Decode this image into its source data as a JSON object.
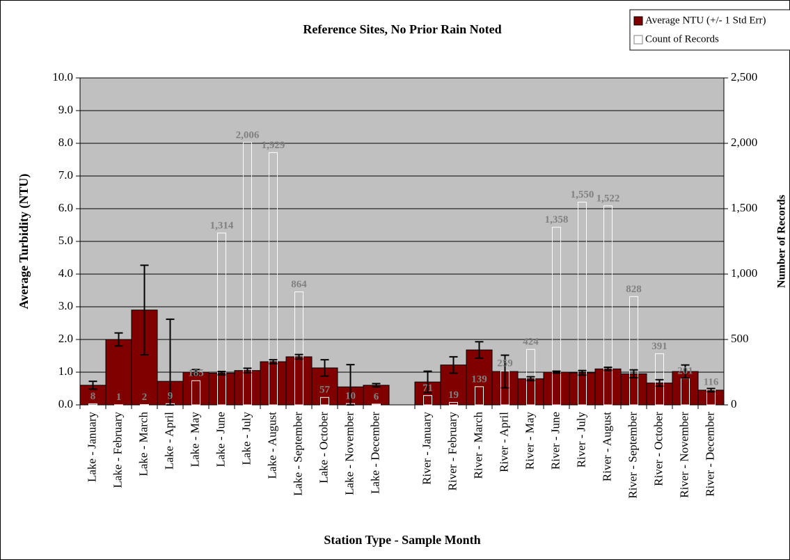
{
  "chart_data": {
    "type": "bar",
    "title": "Reference Sites, No Prior Rain Noted",
    "x_label": "Station Type - Sample Month",
    "y_label": "Average Turbidity (NTU)",
    "y2_label": "Number of Records",
    "categories": [
      "Lake - January",
      "Lake - February",
      "Lake - March",
      "Lake - April",
      "Lake - May",
      "Lake - June",
      "Lake - July",
      "Lake - August",
      "Lake - September",
      "Lake - October",
      "Lake - November",
      "Lake - December",
      null,
      "River - January",
      "River - February",
      "River - March",
      "River - April",
      "River - May",
      "River - June",
      "River - July",
      "River - August",
      "River - September",
      "River - October",
      "River - November",
      "River - December"
    ],
    "series": [
      {
        "name": "Average NTU (+/- 1 Std Err)",
        "color": "#800000",
        "values": [
          0.6,
          2.0,
          2.9,
          0.72,
          1.0,
          0.97,
          1.05,
          1.32,
          1.47,
          1.13,
          0.55,
          0.6,
          null,
          0.7,
          1.22,
          1.68,
          1.02,
          0.8,
          1.0,
          0.98,
          1.1,
          0.95,
          0.67,
          1.02,
          0.45
        ],
        "errors": [
          0.12,
          0.2,
          1.37,
          1.9,
          0.08,
          0.05,
          0.07,
          0.06,
          0.07,
          0.25,
          0.68,
          0.05,
          null,
          0.33,
          0.25,
          0.25,
          0.5,
          0.06,
          0.03,
          0.07,
          0.05,
          0.12,
          0.1,
          0.2,
          0.05
        ]
      },
      {
        "name": "Count of Records",
        "color": "#ffffff",
        "axis": "y2",
        "values": [
          8,
          1,
          2,
          9,
          185,
          1314,
          2006,
          1929,
          864,
          57,
          10,
          6,
          null,
          71,
          19,
          139,
          259,
          424,
          1358,
          1550,
          1522,
          828,
          391,
          201,
          116
        ],
        "value_labels": [
          "8",
          "1",
          "2",
          "9",
          "185",
          "1,314",
          "2,006",
          "1,929",
          "864",
          "57",
          "10",
          "6",
          null,
          "71",
          "19",
          "139",
          "259",
          "424",
          "1,358",
          "1,550",
          "1,522",
          "828",
          "391",
          "201",
          "116"
        ]
      }
    ],
    "ylim": [
      0,
      10
    ],
    "yticks": [
      {
        "value": 0,
        "label": "0.0"
      },
      {
        "value": 1,
        "label": "1.0"
      },
      {
        "value": 2,
        "label": "2.0"
      },
      {
        "value": 3,
        "label": "3.0"
      },
      {
        "value": 4,
        "label": "4.0"
      },
      {
        "value": 5,
        "label": "5.0"
      },
      {
        "value": 6,
        "label": "6.0"
      },
      {
        "value": 7,
        "label": "7.0"
      },
      {
        "value": 8,
        "label": "8.0"
      },
      {
        "value": 9,
        "label": "9.0"
      },
      {
        "value": 10,
        "label": "10.0"
      }
    ],
    "y2lim": [
      0,
      2500
    ],
    "y2ticks": [
      0,
      500,
      {
        "value": 1000,
        "label": "1,000"
      },
      {
        "value": 1500,
        "label": "1,500"
      },
      {
        "value": 2000,
        "label": "2,000"
      },
      {
        "value": 2500,
        "label": "2,500"
      }
    ],
    "grid": true,
    "legend": "top-right"
  }
}
